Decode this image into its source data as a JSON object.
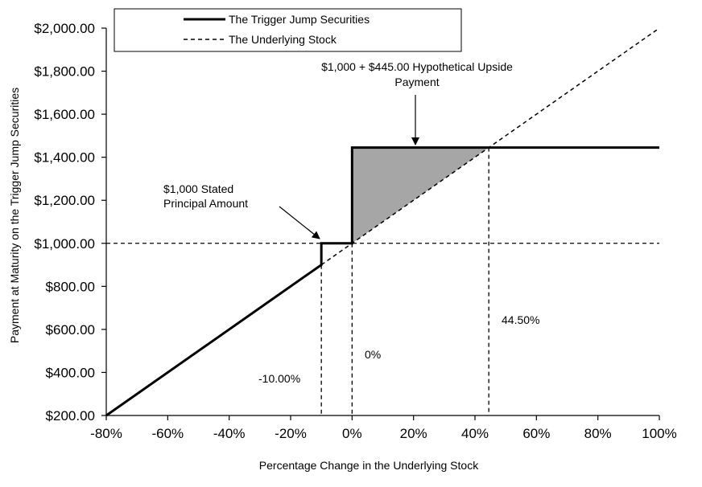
{
  "chart_data": {
    "type": "line",
    "xlabel": "Percentage Change in the Underlying Stock",
    "ylabel": "Payment at Maturity on the Trigger Jump Securities",
    "xlim": [
      -80,
      100
    ],
    "ylim": [
      200,
      2000
    ],
    "x_ticks": [
      "-80%",
      "-60%",
      "-40%",
      "-20%",
      "0%",
      "20%",
      "40%",
      "60%",
      "80%",
      "100%"
    ],
    "x_tick_values": [
      -80,
      -60,
      -40,
      -20,
      0,
      20,
      40,
      60,
      80,
      100
    ],
    "y_ticks": [
      "$200.00",
      "$400.00",
      "$600.00",
      "$800.00",
      "$1,000.00",
      "$1,200.00",
      "$1,400.00",
      "$1,600.00",
      "$1,800.00",
      "$2,000.00"
    ],
    "y_tick_values": [
      200,
      400,
      600,
      800,
      1000,
      1200,
      1400,
      1600,
      1800,
      2000
    ],
    "grid": false,
    "legend": {
      "placement": "top",
      "entries": [
        {
          "label": "The Trigger Jump Securities",
          "style": "solid"
        },
        {
          "label": "The Underlying Stock",
          "style": "dashed"
        }
      ]
    },
    "series": [
      {
        "name": "The Trigger Jump Securities",
        "style": "solid",
        "points": [
          [
            -80,
            200
          ],
          [
            -10,
            900
          ],
          [
            -10,
            1000
          ],
          [
            0,
            1000
          ],
          [
            0,
            1445
          ],
          [
            100,
            1445
          ]
        ]
      },
      {
        "name": "The Underlying Stock",
        "style": "dashed",
        "points": [
          [
            -10,
            900
          ],
          [
            100,
            2000
          ]
        ]
      }
    ],
    "reference_lines": [
      {
        "orientation": "horizontal",
        "value": 1000,
        "style": "dashed"
      },
      {
        "orientation": "vertical",
        "value": -10,
        "style": "dashed"
      },
      {
        "orientation": "vertical",
        "value": 0,
        "style": "dashed"
      },
      {
        "orientation": "vertical",
        "value": 44.5,
        "style": "dashed"
      }
    ],
    "shaded_region": {
      "color": "#a6a6a6",
      "points": [
        [
          0,
          1000
        ],
        [
          0,
          1445
        ],
        [
          44.5,
          1445
        ]
      ]
    },
    "annotations": [
      {
        "text_lines": [
          "$1,000 + $445.00 Hypothetical Upside",
          "Payment"
        ],
        "arrow_to": [
          20,
          1445
        ]
      },
      {
        "text_lines": [
          "$1,000 Stated",
          "Principal Amount"
        ],
        "arrow_to": [
          -10,
          1000
        ]
      },
      {
        "text": "-10.00%"
      },
      {
        "text": "0%"
      },
      {
        "text": "44.50%"
      }
    ]
  }
}
